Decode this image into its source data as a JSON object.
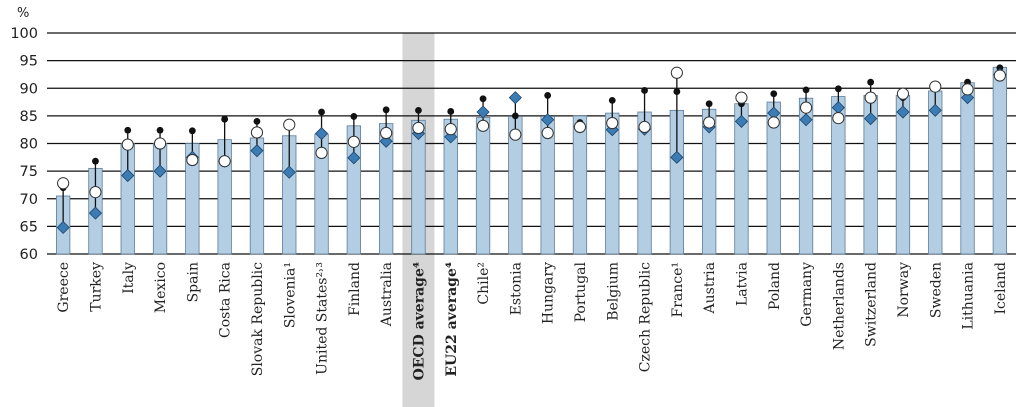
{
  "chart_data": {
    "type": "bar",
    "unit_label": "%",
    "ylim": [
      60,
      100
    ],
    "yticks": [
      60,
      65,
      70,
      75,
      80,
      85,
      90,
      95,
      100
    ],
    "grid": true,
    "legend": "none",
    "highlight_category": "OECD average⁴",
    "categories": [
      "Greece",
      "Turkey",
      "Italy",
      "Mexico",
      "Spain",
      "Costa Rica",
      "Slovak Republic",
      "Slovenia¹",
      "United States²˒³",
      "Finland",
      "Australia",
      "OECD average⁴",
      "EU22 average⁴",
      "Chile²",
      "Estonia",
      "Hungary",
      "Portugal",
      "Belgium",
      "Czech Republic",
      "France¹",
      "Austria",
      "Latvia",
      "Poland",
      "Germany",
      "Netherlands",
      "Switzerland",
      "Norway",
      "Sweden",
      "Lithuania",
      "Iceland"
    ],
    "bold_categories": [
      "OECD average⁴",
      "EU22 average⁴"
    ],
    "series": [
      {
        "values": [
          70.5,
          75.5,
          80,
          80,
          80,
          80.7,
          81,
          81.4,
          81.7,
          83.2,
          83.6,
          84.2,
          84.4,
          84.7,
          84.9,
          84.9,
          85,
          85.5,
          85.7,
          86,
          86.2,
          87.2,
          87.5,
          88.2,
          88.5,
          88.7,
          88.7,
          89.5,
          91,
          93.8
        ]
      },
      {
        "values": [
          64.8,
          67.4,
          74.2,
          75,
          77.5,
          76.8,
          78.7,
          74.8,
          81.8,
          77.4,
          80.4,
          81.8,
          81.2,
          85.7,
          88.3,
          84.3,
          83,
          82.5,
          82.6,
          77.5,
          83,
          84,
          85.5,
          84.3,
          86.5,
          84.5,
          85.7,
          86,
          88.3,
          92.5
        ]
      },
      {
        "values": [
          72.8,
          71.2,
          79.8,
          80,
          77,
          76.8,
          82,
          83.4,
          78.3,
          80.3,
          81.9,
          82.8,
          82.6,
          83.2,
          81.6,
          81.9,
          83,
          83.7,
          83,
          92.8,
          83.8,
          88.3,
          83.8,
          86.5,
          84.6,
          88.3,
          89,
          90.3,
          89.8,
          92.3
        ]
      },
      {
        "values": [
          72,
          76.8,
          82.4,
          82.4,
          82.3,
          84.4,
          84,
          83,
          85.7,
          84.9,
          86.1,
          86,
          85.8,
          88.1,
          85,
          88.7,
          83.8,
          87.8,
          89.6,
          89.4,
          87.2,
          87.2,
          89,
          89.7,
          89.9,
          91.1,
          88.3,
          89.9,
          91.1,
          93.7
        ]
      }
    ],
    "colors": {
      "bar": "#b3cde3",
      "bar_stroke": "#5d7d98",
      "diamond": "#3b7cb4",
      "diamond_stroke": "#1f4466",
      "dot": "#111111",
      "highlight": "#d6d6d6"
    }
  }
}
